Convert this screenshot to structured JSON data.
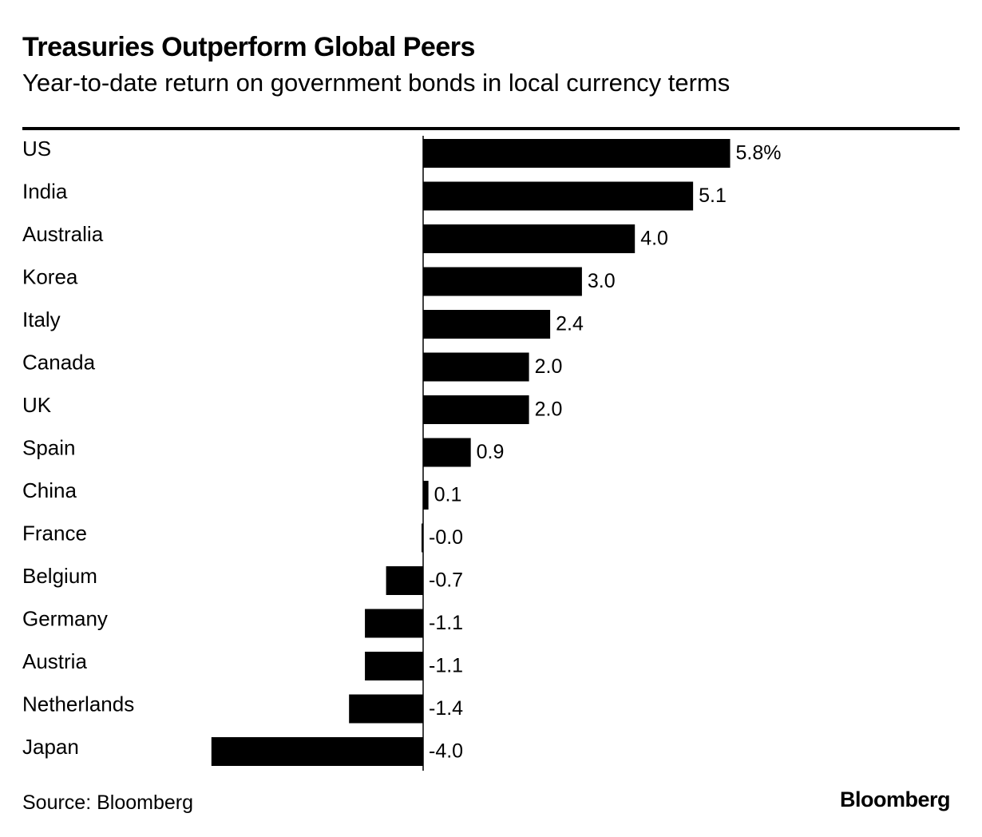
{
  "chart_data": {
    "type": "bar",
    "orientation": "horizontal",
    "title": "Treasuries Outperform Global Peers",
    "subtitle": "Year-to-date return on government bonds in local currency terms",
    "categories": [
      "US",
      "India",
      "Australia",
      "Korea",
      "Italy",
      "Canada",
      "UK",
      "Spain",
      "China",
      "France",
      "Belgium",
      "Germany",
      "Austria",
      "Netherlands",
      "Japan"
    ],
    "values": [
      5.8,
      5.1,
      4.0,
      3.0,
      2.4,
      2.0,
      2.0,
      0.9,
      0.1,
      -0.02,
      -0.7,
      -1.1,
      -1.1,
      -1.4,
      -4.0
    ],
    "data_labels": [
      "5.8%",
      "5.1",
      "4.0",
      "3.0",
      "2.4",
      "2.0",
      "2.0",
      "0.9",
      "0.1",
      "-0.0",
      "-0.7",
      "-1.1",
      "-1.1",
      "-1.4",
      "-4.0"
    ],
    "bar_color": "#000000",
    "xlim": [
      -4.0,
      5.8
    ],
    "xlabel": "",
    "ylabel": "",
    "grid": false
  },
  "footer": {
    "source": "Source: Bloomberg",
    "brand": "Bloomberg"
  }
}
